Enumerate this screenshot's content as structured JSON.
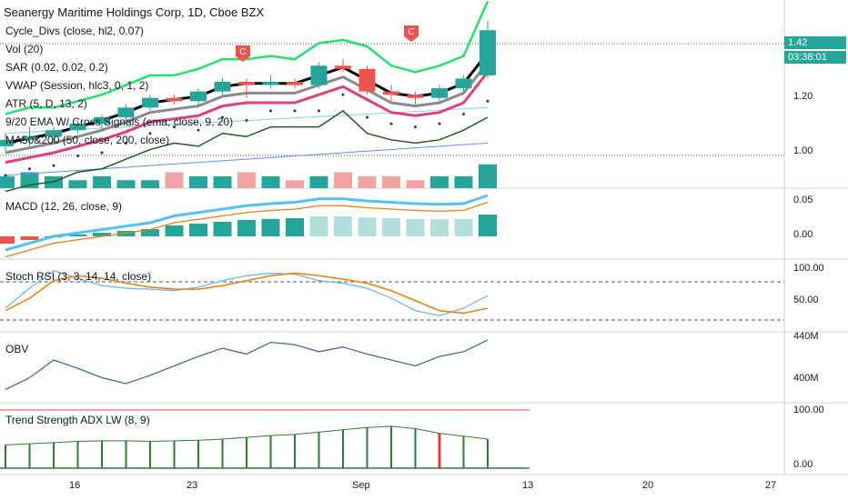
{
  "header": {
    "title": "Seanergy Maritime Holdings Corp, 1D, Cboe BZX"
  },
  "indicators": [
    "Cycle_Divs (close, hl2, 0.07)",
    "Vol (20)",
    "SAR (0.02, 0.02, 0.2)",
    "VWAP (Session, hlc3, 0, 1, 2)",
    "ATR (5, D, 13, 2)",
    "9/20 EMA W/ Cross Signals (ema, close, 9, 20)",
    "MA50&200 (50, close, 200, close)"
  ],
  "panes": {
    "macd": "MACD (12, 26, close, 9)",
    "stoch": "Stoch RSI (3, 3, 14, 14, close)",
    "obv": "OBV",
    "adx": "Trend Strength ADX LW (8, 9)"
  },
  "price_axis": {
    "p120": "1.20",
    "p100": "1.00",
    "current": "1.42",
    "countdown": "03:38:01"
  },
  "macd_axis": {
    "a": "0.05",
    "b": "0.00"
  },
  "stoch_axis": {
    "a": "100.00",
    "b": "50.00"
  },
  "obv_axis": {
    "a": "440M",
    "b": "400M"
  },
  "adx_axis": {
    "a": "100.00",
    "b": "0.00"
  },
  "x_axis": [
    "16",
    "23",
    "Sep",
    "13",
    "20",
    "27"
  ],
  "markers": [
    "C",
    "C"
  ],
  "colors": {
    "up": "#26a69a",
    "down": "#ef5350",
    "green_line": "#22e36a",
    "vwap": "#8a8a8a",
    "ema": "#e0407a"
  },
  "chart_data": {
    "type": "candlestick",
    "candles": [
      {
        "o": 1.06,
        "h": 1.1,
        "l": 1.04,
        "c": 1.08
      },
      {
        "o": 1.08,
        "h": 1.12,
        "l": 1.06,
        "c": 1.09
      },
      {
        "o": 1.09,
        "h": 1.12,
        "l": 1.07,
        "c": 1.11
      },
      {
        "o": 1.11,
        "h": 1.14,
        "l": 1.1,
        "c": 1.13
      },
      {
        "o": 1.13,
        "h": 1.16,
        "l": 1.11,
        "c": 1.15
      },
      {
        "o": 1.15,
        "h": 1.19,
        "l": 1.14,
        "c": 1.18
      },
      {
        "o": 1.18,
        "h": 1.22,
        "l": 1.17,
        "c": 1.21
      },
      {
        "o": 1.21,
        "h": 1.22,
        "l": 1.19,
        "c": 1.2
      },
      {
        "o": 1.2,
        "h": 1.24,
        "l": 1.18,
        "c": 1.23
      },
      {
        "o": 1.23,
        "h": 1.27,
        "l": 1.22,
        "c": 1.26
      },
      {
        "o": 1.26,
        "h": 1.27,
        "l": 1.21,
        "c": 1.25
      },
      {
        "o": 1.25,
        "h": 1.28,
        "l": 1.24,
        "c": 1.26
      },
      {
        "o": 1.26,
        "h": 1.27,
        "l": 1.24,
        "c": 1.25
      },
      {
        "o": 1.25,
        "h": 1.32,
        "l": 1.24,
        "c": 1.31
      },
      {
        "o": 1.31,
        "h": 1.33,
        "l": 1.29,
        "c": 1.3
      },
      {
        "o": 1.3,
        "h": 1.31,
        "l": 1.22,
        "c": 1.23
      },
      {
        "o": 1.23,
        "h": 1.25,
        "l": 1.2,
        "c": 1.22
      },
      {
        "o": 1.22,
        "h": 1.23,
        "l": 1.19,
        "c": 1.21
      },
      {
        "o": 1.21,
        "h": 1.25,
        "l": 1.2,
        "c": 1.24
      },
      {
        "o": 1.24,
        "h": 1.28,
        "l": 1.23,
        "c": 1.27
      },
      {
        "o": 1.28,
        "h": 1.45,
        "l": 1.27,
        "c": 1.42
      }
    ],
    "volume": [
      3,
      4,
      3,
      2,
      3,
      2,
      2,
      4,
      3,
      3,
      4,
      3,
      2,
      3,
      4,
      3,
      3,
      2,
      3,
      3,
      6
    ],
    "macd": [
      -0.02,
      -0.01,
      0.0,
      0.005,
      0.01,
      0.015,
      0.02,
      0.03,
      0.035,
      0.04,
      0.045,
      0.048,
      0.05,
      0.055,
      0.055,
      0.052,
      0.05,
      0.048,
      0.047,
      0.048,
      0.06
    ],
    "stoch_k": [
      20,
      60,
      95,
      80,
      65,
      60,
      58,
      55,
      62,
      75,
      85,
      90,
      88,
      75,
      70,
      60,
      40,
      15,
      5,
      20,
      45
    ],
    "stoch_d": [
      15,
      40,
      75,
      85,
      80,
      70,
      62,
      58,
      58,
      65,
      75,
      85,
      90,
      85,
      78,
      70,
      55,
      35,
      15,
      10,
      20
    ],
    "obv": [
      400,
      410,
      425,
      418,
      410,
      405,
      412,
      420,
      428,
      435,
      430,
      440,
      438,
      432,
      436,
      430,
      425,
      420,
      428,
      432,
      442
    ],
    "adx": [
      40,
      42,
      44,
      46,
      47,
      47,
      46,
      47,
      48,
      50,
      53,
      56,
      58,
      62,
      66,
      70,
      72,
      68,
      60,
      55,
      50
    ]
  }
}
